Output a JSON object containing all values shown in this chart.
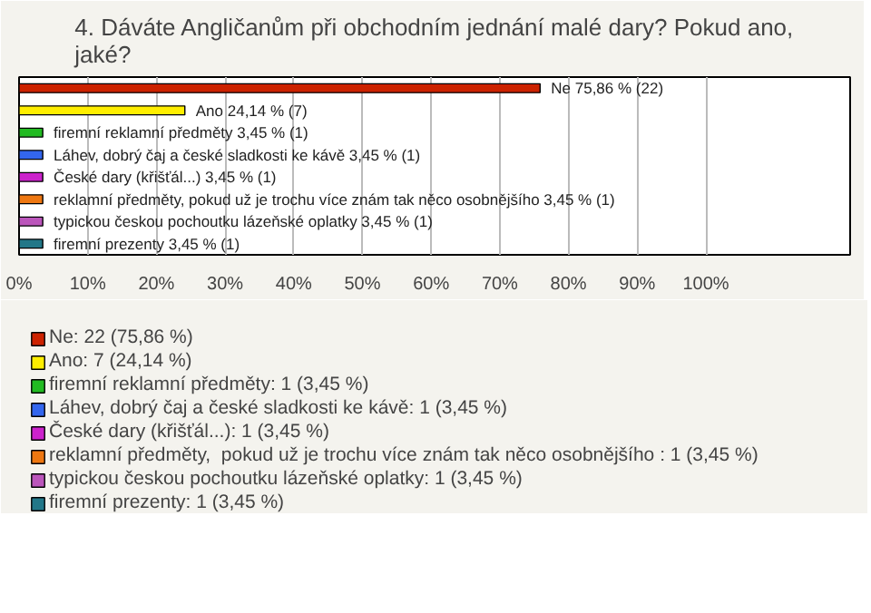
{
  "chart_data": {
    "type": "bar",
    "orientation": "horizontal",
    "title": "4. Dáváte Angličanům při obchodním jednání malé dary? Pokud ano, jaké?",
    "categories": [
      null,
      null,
      null,
      null,
      null,
      null,
      null,
      null
    ],
    "series": [
      {
        "name": "Ne: 22 (75,86 %)",
        "color": "#cc2200",
        "values": [
          75.86,
          null,
          null,
          null,
          null,
          null,
          null,
          null
        ],
        "value_labels": [
          "Ne 75,86 % (22)",
          null,
          null,
          null,
          null,
          null,
          null,
          null
        ]
      },
      {
        "name": "Ano: 7 (24,14 %)",
        "color": "#ffee00",
        "values": [
          null,
          24.14,
          null,
          null,
          null,
          null,
          null,
          null
        ],
        "value_labels": [
          null,
          "Ano 24,14 % (7)",
          null,
          null,
          null,
          null,
          null,
          null
        ]
      },
      {
        "name": "firemní reklamní předměty: 1 (3,45 %)",
        "color": "#22bb22",
        "values": [
          null,
          null,
          3.45,
          null,
          null,
          null,
          null,
          null
        ],
        "value_labels": [
          null,
          null,
          "firemní reklamní předměty 3,45 % (1)",
          null,
          null,
          null,
          null,
          null
        ]
      },
      {
        "name": "Láhev, dobrý čaj a české sladkosti ke kávě: 1 (3,45 %)",
        "color": "#3366ee",
        "values": [
          null,
          null,
          null,
          3.45,
          null,
          null,
          null,
          null
        ],
        "value_labels": [
          null,
          null,
          null,
          "Láhev, dobrý čaj a české sladkosti ke kávě 3,45 % (1)",
          null,
          null,
          null,
          null
        ]
      },
      {
        "name": "České dary (křišťál...): 1 (3,45 %)",
        "color": "#cc22cc",
        "values": [
          null,
          null,
          null,
          null,
          3.45,
          null,
          null,
          null
        ],
        "value_labels": [
          null,
          null,
          null,
          null,
          "České dary (křišťál...) 3,45 % (1)",
          null,
          null,
          null
        ]
      },
      {
        "name": "reklamní předměty,  pokud už je trochu více znám tak něco osobnějšího : 1 (3,45 %)",
        "color": "#ee7711",
        "values": [
          null,
          null,
          null,
          null,
          null,
          3.45,
          null,
          null
        ],
        "value_labels": [
          null,
          null,
          null,
          null,
          null,
          "reklamní předměty,  pokud už je trochu více znám tak něco osobnějšího  3,45 % (1)",
          null,
          null
        ]
      },
      {
        "name": "typickou českou pochoutku lázeňské oplatky: 1 (3,45 %)",
        "color": "#bb55bb",
        "values": [
          null,
          null,
          null,
          null,
          null,
          null,
          3.45,
          null
        ],
        "value_labels": [
          null,
          null,
          null,
          null,
          null,
          null,
          "typickou českou pochoutku lázeňské oplatky 3,45 % (1)",
          null
        ]
      },
      {
        "name": "firemní prezenty: 1 (3,45 %)",
        "color": "#227788",
        "values": [
          null,
          null,
          null,
          null,
          null,
          null,
          null,
          3.45
        ],
        "value_labels": [
          null,
          null,
          null,
          null,
          null,
          null,
          null,
          "firemní prezenty 3,45 % (1)"
        ]
      }
    ],
    "xlim": [
      0,
      121
    ],
    "xticks": [
      {
        "value": 0,
        "label": "0%"
      },
      {
        "value": 10,
        "label": "10%"
      },
      {
        "value": 20,
        "label": "20%"
      },
      {
        "value": 30,
        "label": "30%"
      },
      {
        "value": 40,
        "label": "40%"
      },
      {
        "value": 50,
        "label": "50%"
      },
      {
        "value": 60,
        "label": "60%"
      },
      {
        "value": 70,
        "label": "70%"
      },
      {
        "value": 80,
        "label": "80%"
      },
      {
        "value": 90,
        "label": "90%"
      },
      {
        "value": 100,
        "label": "100%"
      }
    ],
    "grid": "x",
    "legend": "bottom",
    "stacked": true
  }
}
